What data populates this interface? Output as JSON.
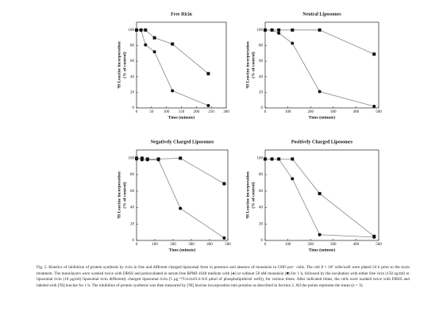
{
  "chart_data": [
    {
      "type": "line",
      "title": "Free Ricin",
      "xlabel": "Time (minute)",
      "ylabel": [
        "³H Leucine incorporation",
        "(% of control)"
      ],
      "x": [
        0,
        15,
        30,
        60,
        120,
        240
      ],
      "xlim": [
        0,
        300
      ],
      "xticks": [
        0,
        50,
        100,
        150,
        200,
        250,
        300
      ],
      "ylim": [
        0,
        110
      ],
      "yticks": [
        0,
        20,
        40,
        60,
        80,
        100
      ],
      "series": [
        {
          "marker": "square",
          "color": "#111111",
          "values": [
            100,
            100,
            100,
            90,
            82,
            44
          ]
        },
        {
          "marker": "circle",
          "color": "#111111",
          "values": [
            100,
            100,
            81,
            72,
            22,
            3
          ]
        }
      ]
    },
    {
      "type": "line",
      "title": "Neutral Liposomes",
      "xlabel": "Time (minute)",
      "ylabel": [
        "³H Leucine incorporation",
        "(% of control)"
      ],
      "x": [
        0,
        30,
        60,
        120,
        240,
        480
      ],
      "xlim": [
        0,
        500
      ],
      "xticks": [
        0,
        100,
        200,
        300,
        400,
        500
      ],
      "ylim": [
        0,
        110
      ],
      "yticks": [
        0,
        20,
        40,
        60,
        80,
        100
      ],
      "series": [
        {
          "marker": "square",
          "color": "#111111",
          "values": [
            100,
            100,
            100,
            100,
            100,
            69
          ]
        },
        {
          "marker": "circle",
          "color": "#111111",
          "values": [
            100,
            100,
            96,
            83,
            21,
            2
          ]
        }
      ]
    },
    {
      "type": "line",
      "title": "Negatively Charged Liposomes",
      "xlabel": "Time (minute)",
      "ylabel": [
        "³H Leucine incorporation",
        "(% of control)"
      ],
      "x": [
        0,
        30,
        60,
        120,
        240,
        480
      ],
      "xlim": [
        0,
        500
      ],
      "xticks": [
        0,
        100,
        200,
        300,
        400,
        500
      ],
      "ylim": [
        0,
        110
      ],
      "yticks": [
        0,
        20,
        40,
        60,
        80,
        100
      ],
      "series": [
        {
          "marker": "square",
          "color": "#111111",
          "values": [
            100,
            100,
            99,
            99,
            100,
            69
          ]
        },
        {
          "marker": "circle",
          "color": "#111111",
          "values": [
            99,
            98,
            98,
            98,
            39,
            3
          ]
        }
      ]
    },
    {
      "type": "line",
      "title": "Positively Charged Liposomes",
      "xlabel": "Time (minute)",
      "ylabel": [
        "³H Leucine incorporation",
        "(% of control)"
      ],
      "x": [
        0,
        30,
        60,
        120,
        240,
        480
      ],
      "xlim": [
        0,
        500
      ],
      "xticks": [
        0,
        100,
        200,
        300,
        400,
        500
      ],
      "ylim": [
        0,
        110
      ],
      "yticks": [
        0,
        20,
        40,
        60,
        80,
        100
      ],
      "series": [
        {
          "marker": "square",
          "color": "#111111",
          "values": [
            99,
            99,
            99,
            99,
            57,
            5
          ]
        },
        {
          "marker": "circle",
          "color": "#111111",
          "values": [
            99,
            99,
            99,
            75,
            7,
            4
          ]
        }
      ]
    }
  ],
  "caption": "Fig. 5. Kinetics of inhibition of protein synthesis by ricin in free and different charged liposomal form in presence and absence of monensin in CHO pro⁻ cells. The cell 8 × 10⁵ cells/well were plated 24 h prior to the toxin treatment. The monolayers were washed twice with DBSS and preincubated in serum free RPMI-1640 medium with (●) or without 50 nM monensin (■) for 1 h, followed by the incubation with either free ricin (150 ng/ml) or liposomal ricin (10 µg/ml) liposomal ricin differently charged liposomal ricin (5 µg ¹²⁵I-ricin/0.4–0.8 µmol of phospholipids/ml well)), for various times. After indicated times, the cells were washed twice with DBSS and labeled with [³H] leucine for 1 h. The inhibition of protein synthesis was then measured by [³H] leucine incorporation into proteins as described in Section 2. All the points represent the mean (n = 3)."
}
